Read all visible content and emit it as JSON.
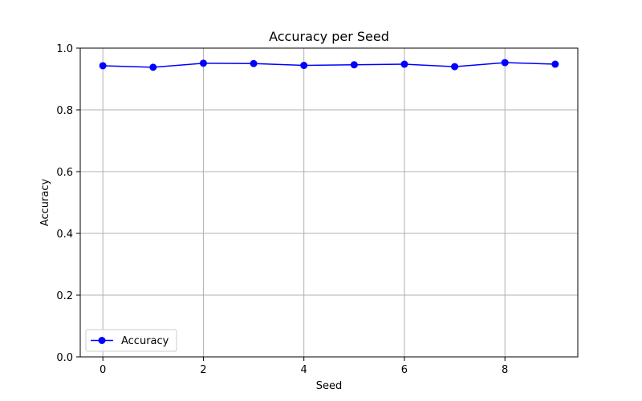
{
  "chart_data": {
    "type": "line",
    "title": "Accuracy per Seed",
    "xlabel": "Seed",
    "ylabel": "Accuracy",
    "x": [
      0,
      1,
      2,
      3,
      4,
      5,
      6,
      7,
      8,
      9
    ],
    "series": [
      {
        "name": "Accuracy",
        "values": [
          0.943,
          0.938,
          0.951,
          0.95,
          0.944,
          0.946,
          0.948,
          0.94,
          0.953,
          0.948
        ],
        "color": "#0000ff",
        "marker": "circle"
      }
    ],
    "xlim": [
      -0.45,
      9.45
    ],
    "ylim": [
      0.0,
      1.0
    ],
    "xticks": [
      0,
      2,
      4,
      6,
      8
    ],
    "xtick_labels": [
      "0",
      "2",
      "4",
      "6",
      "8"
    ],
    "yticks": [
      0.0,
      0.2,
      0.4,
      0.6,
      0.8,
      1.0
    ],
    "ytick_labels": [
      "0.0",
      "0.2",
      "0.4",
      "0.6",
      "0.8",
      "1.0"
    ],
    "grid": true,
    "grid_color": "#b0b0b0",
    "legend_position": "lower-left"
  }
}
